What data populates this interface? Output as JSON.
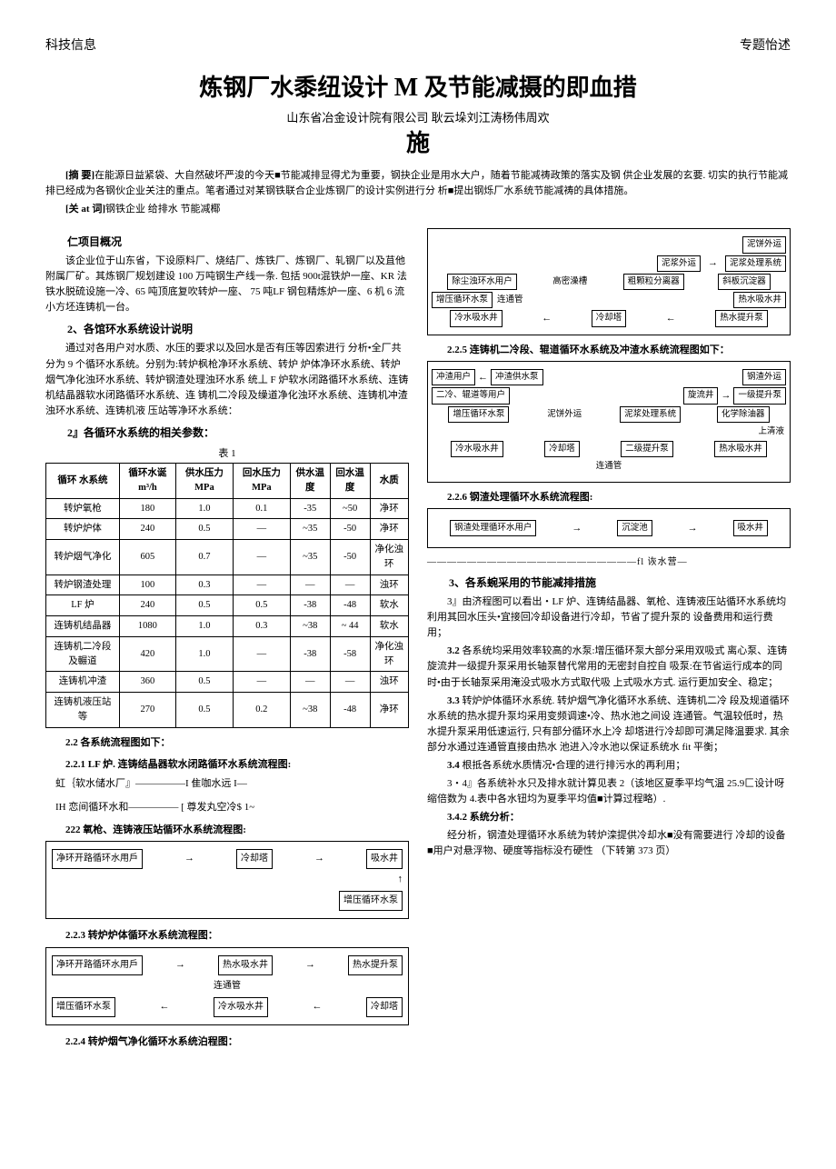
{
  "header": {
    "left": "科技信息",
    "right": "专题怡述"
  },
  "title_parts": {
    "a": "炼钢厂水黍纽设计 ",
    "m": "M",
    "b": " 及节能减摄的即血措",
    "c": "施"
  },
  "subtitle": "山东省冶金设计院有限公司  耿云垛刘江涛杨伟周欢",
  "abstract_label": "[摘  要]",
  "abstract_text": "在能源日益紧袋、大自然破坏严浚的今天■节能减排显得尤为重要，钢抉企业是用水大户，随着节能减祷政策的落实及钢 供企业发展的玄要. 切实的执行节能减排已经成为各钢伙企业关注的重点。笔者通过对某钢铁联合企业炼钢厂的设计实例进行分 析■提出钢烁厂水系统节能减祷的具体措施。",
  "kw_label": "[关 at 词]",
  "kw_text": "钢铁企业  给排水 节能减椰",
  "left": {
    "h1": "仁项目概况",
    "p1": "该企业位于山东省，下设原料厂、烧结厂、炼铁厂、炼钢厂、轧钢厂以及苴他附属厂矿。其炼钢厂规划建设 100 万吨钢生产线一条. 包括  900t混铁炉一座、KR 法铁水脱硫设施一冷、65 吨顶底复吹转炉一座、  75 吨LF 钢包精炼炉一座、6 机 6 流小方坯连铸机一台。",
    "h2": "2、各馆环水系统设计说明",
    "p2": "通过对各用户对水质、水压的要求以及回水是否有压等因索进行 分析•全厂共分为 9 个循环水系统。分别为:转炉枫枪净环水系统、转炉 炉体净环水系统、转炉烟气净化浊环水系统、转炉钢渣处理浊环水系 统丄 F 炉软水闭路循环水系统、连铸机结晶器软水闭路循环水系统、连 铸机二冷段及缲道净化浊环水系统、连铸机冲渣浊环水系统、连铸机液 压站等净环水系统：",
    "h3": "2』各循环水系统的相关参数：",
    "tbl_title": "表 1",
    "table": {
      "headers": [
        "循环  水系统",
        "循环水诞 m³/h",
        "供水压力 MPa",
        "回水压力 MPa",
        "供水温度",
        "回水温度",
        "水质"
      ],
      "rows": [
        [
          "转炉氧枪",
          "180",
          "1.0",
          "0.1",
          "-35",
          "~50",
          "净环"
        ],
        [
          "转炉炉体",
          "240",
          "0.5",
          "—",
          "~35",
          "-50",
          "净环"
        ],
        [
          "转炉烟气净化",
          "605",
          "0.7",
          "—",
          "~35",
          "-50",
          "净化浊环"
        ],
        [
          "转炉钢渣处理",
          "100",
          "0.3",
          "—",
          "—",
          "—",
          "浊环"
        ],
        [
          "LF 炉",
          "240",
          "0.5",
          "0.5",
          "-38",
          "-48",
          "软水"
        ],
        [
          "连铸机结晶器",
          "1080",
          "1.0",
          "0.3",
          "~38",
          "~ 44",
          "软水"
        ],
        [
          "连铸机二冷段及輾道",
          "420",
          "1.0",
          "—",
          "-38",
          "-58",
          "净化浊环"
        ],
        [
          "连铸机冲渣",
          "360",
          "0.5",
          "—",
          "—",
          "—",
          "浊环"
        ],
        [
          "连铸机液压站等",
          "270",
          "0.5",
          "0.2",
          "~38",
          "-48",
          "净环"
        ]
      ]
    },
    "cap22": "2.2 各系统流程图如下：",
    "cap221": "2.2.1 LF 炉. 连铸结晶器软水闭路循环水系统流程图:",
    "flow221_a": "虹｛软水储水厂』—————I 隹咖水远 I—",
    "flow221_b": "IH 恋间循环水和————— [ 尊发丸空冷$ 1~",
    "cap222": "222 氧枪、连铸液压站循环水系统流程图:",
    "flow222": {
      "r1": [
        "净环开路循环水用戶",
        "→",
        "冷却塔",
        "→",
        "吸水井"
      ],
      "r2": [
        "",
        "",
        "",
        "",
        "增压循环水泵"
      ]
    },
    "cap223": "2.2.3 转炉炉体循环水系统流程图：",
    "flow223": {
      "r1": [
        "净环开路循环水用戶",
        "→",
        "热水吸水井",
        "→",
        "热水提升泵"
      ],
      "mid": "连通管",
      "r2": [
        "增压循环水泵",
        "←",
        "冷水吸水井",
        "←",
        "冷却塔"
      ]
    },
    "cap224": "2.2.4 转炉烟气净化循环水系统泊程图："
  },
  "right": {
    "flow_top": {
      "rows": [
        [
          "",
          "",
          "泥饼外运"
        ],
        [
          "泥浆外运",
          "→",
          "泥浆处理系统"
        ],
        [
          "除尘浊环水用户",
          "高密澡槽",
          "粗颗粒分离器",
          "斜板沉淀器"
        ],
        [
          "增压循环水泵",
          "连通管",
          "",
          "热水吸水井"
        ],
        [
          "冷水吸水井",
          "←",
          "冷却塔",
          "←",
          "热水提升泵"
        ]
      ]
    },
    "cap225": "2.2.5 连铸机二冷段、辊道循环水系统及冲渣水系统流程图如下：",
    "flow225": {
      "r1": [
        "冲渣用户",
        "←",
        "冲渣供水泵",
        "",
        "钢渣外运"
      ],
      "r2": [
        "二冷、辊道等用户",
        "",
        "旋流井",
        "→",
        "一级提升泵"
      ],
      "r3": [
        "增压循环水泵",
        "泥饼外运",
        "泥浆处理系统",
        "化学除油器"
      ],
      "mid": "上清液",
      "r4": [
        "冷水吸水井",
        "冷却塔",
        "二级提升泵",
        "热水吸水井"
      ],
      "bot": "连通管"
    },
    "cap226": "2.2.6 钢渣处理循环水系统流程图:",
    "flow226": {
      "r1": [
        "钢渣处理循环水用户",
        "→",
        "沉淀池",
        "→",
        "吸水井"
      ]
    },
    "note226": "—————————————————————fl 诙水营—",
    "h3": "3、各系蜿采用的节能减排措施",
    "p31": "3』由济程图可以看出・LF 炉、连铸结晶器、氧枪、连铸液压站循环水系统均利用其回水压头•宜接回冷却设备进行冷却，节省了提升泵的 设备费用和运行费用；",
    "p32_h": "3.2 ",
    "p32": "各系统均采用效率较高的水泵:增压循环泵大部分采用双吸式 离心泵、连铸旋流井一级提升泵采用长轴泵替代常用的无密封自控自 吸泵:在节省运行成本的同时•由于长轴泵采用淹没式吸水方式取代吸 上式吸水方式. 运行更加安全、稳定；",
    "p33_h": "3.3 ",
    "p33": "转炉炉体循环水系统. 转炉烟气净化循环水系统、连铸机二冷 段及规道循环水系统的热水提升泵均采用变频调速•冷、热水池之间设 连通管。气温较低时，热水提升泵采用低速运行, 只有部分循环水上冷 却塔进行冷却即可满足降温要求. 其余部分水通过连通管直接由热水 池进入冷水池以保证系统水 fit 平衡；",
    "p34_h": "3.4 ",
    "p34": "根抵各系统水质情况•合理的进行排污水的再利用；",
    "p341": "3・4』各系统补水只及排水就计算见表 2（该地区夏季平均气温 25.9匚设计呀缩倍数为 4.表中各水钮均为夏季平均值■计算过程略）.",
    "p342_h": "3.4.2 系统分析：",
    "p342": "经分析，钢渣处理循环水系统为转炉滦提供冷却水■没有需要进行 冷却的设备■用户对悬浮物、硬度等指标没冇硬性      （下转第 373 页）"
  }
}
